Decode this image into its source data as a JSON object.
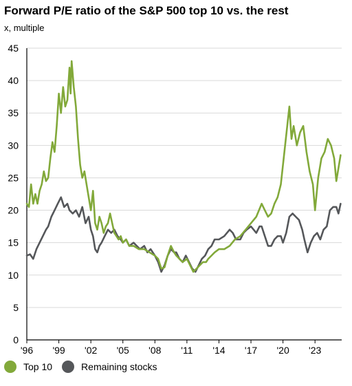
{
  "chart_data": {
    "type": "line",
    "title": "Forward P/E ratio of the S&P 500 top 10 vs. the rest",
    "subtitle": "x, multiple",
    "ylim": [
      0,
      45
    ],
    "xlim": [
      1996,
      2025.5
    ],
    "y_ticks": [
      0,
      5,
      10,
      15,
      20,
      25,
      30,
      35,
      40,
      45
    ],
    "x_ticks": [
      {
        "value": 1996,
        "label": "'96"
      },
      {
        "value": 1999,
        "label": "'99"
      },
      {
        "value": 2002,
        "label": "'02"
      },
      {
        "value": 2005,
        "label": "'05"
      },
      {
        "value": 2008,
        "label": "'08"
      },
      {
        "value": 2011,
        "label": "'11"
      },
      {
        "value": 2014,
        "label": "'14"
      },
      {
        "value": 2017,
        "label": "'17"
      },
      {
        "value": 2020,
        "label": "'20"
      },
      {
        "value": 2023,
        "label": "'23"
      }
    ],
    "grid": true,
    "legend_position": "bottom-left",
    "series": [
      {
        "name": "Top 10",
        "color": "#82a93a",
        "points": [
          [
            1996.0,
            21
          ],
          [
            1996.2,
            20.5
          ],
          [
            1996.4,
            24
          ],
          [
            1996.6,
            21
          ],
          [
            1996.8,
            22.5
          ],
          [
            1997.0,
            21
          ],
          [
            1997.2,
            23
          ],
          [
            1997.4,
            24
          ],
          [
            1997.6,
            26
          ],
          [
            1997.8,
            24.5
          ],
          [
            1998.0,
            25
          ],
          [
            1998.2,
            28
          ],
          [
            1998.4,
            30.5
          ],
          [
            1998.6,
            29
          ],
          [
            1998.8,
            33
          ],
          [
            1999.0,
            38
          ],
          [
            1999.2,
            35
          ],
          [
            1999.4,
            39
          ],
          [
            1999.6,
            36
          ],
          [
            1999.8,
            37
          ],
          [
            2000.0,
            42
          ],
          [
            2000.1,
            38
          ],
          [
            2000.2,
            43
          ],
          [
            2000.4,
            39
          ],
          [
            2000.6,
            36
          ],
          [
            2000.8,
            31
          ],
          [
            2001.0,
            27
          ],
          [
            2001.2,
            25
          ],
          [
            2001.4,
            26
          ],
          [
            2001.6,
            24
          ],
          [
            2001.8,
            22
          ],
          [
            2002.0,
            20
          ],
          [
            2002.2,
            23
          ],
          [
            2002.4,
            18
          ],
          [
            2002.6,
            17
          ],
          [
            2002.8,
            19
          ],
          [
            2003.0,
            18
          ],
          [
            2003.2,
            16.5
          ],
          [
            2003.4,
            17.5
          ],
          [
            2003.6,
            18
          ],
          [
            2003.8,
            19.5
          ],
          [
            2004.0,
            18
          ],
          [
            2004.2,
            16.5
          ],
          [
            2004.4,
            16
          ],
          [
            2004.6,
            15.5
          ],
          [
            2004.8,
            16
          ],
          [
            2005.0,
            15
          ],
          [
            2005.3,
            15.5
          ],
          [
            2005.6,
            14.5
          ],
          [
            2006.0,
            14.5
          ],
          [
            2006.5,
            14
          ],
          [
            2007.0,
            14
          ],
          [
            2007.5,
            13.5
          ],
          [
            2008.0,
            13
          ],
          [
            2008.3,
            12.5
          ],
          [
            2008.6,
            11
          ],
          [
            2008.9,
            11.2
          ],
          [
            2009.2,
            13
          ],
          [
            2009.5,
            14.5
          ],
          [
            2009.8,
            13.5
          ],
          [
            2010.0,
            13
          ],
          [
            2010.3,
            12.5
          ],
          [
            2010.6,
            12
          ],
          [
            2011.0,
            12.5
          ],
          [
            2011.3,
            11.5
          ],
          [
            2011.6,
            10.5
          ],
          [
            2011.9,
            11
          ],
          [
            2012.2,
            11.5
          ],
          [
            2012.5,
            12
          ],
          [
            2012.8,
            12
          ],
          [
            2013.0,
            12.5
          ],
          [
            2013.3,
            13
          ],
          [
            2013.6,
            13.5
          ],
          [
            2014.0,
            14
          ],
          [
            2014.5,
            14
          ],
          [
            2015.0,
            14.5
          ],
          [
            2015.5,
            15.5
          ],
          [
            2016.0,
            16
          ],
          [
            2016.5,
            17
          ],
          [
            2017.0,
            18
          ],
          [
            2017.5,
            19
          ],
          [
            2018.0,
            21
          ],
          [
            2018.3,
            20
          ],
          [
            2018.6,
            19
          ],
          [
            2018.9,
            19.5
          ],
          [
            2019.2,
            21
          ],
          [
            2019.5,
            22
          ],
          [
            2019.8,
            24
          ],
          [
            2020.0,
            27
          ],
          [
            2020.2,
            30
          ],
          [
            2020.4,
            33
          ],
          [
            2020.6,
            36
          ],
          [
            2020.8,
            31
          ],
          [
            2021.0,
            33
          ],
          [
            2021.3,
            30
          ],
          [
            2021.6,
            32
          ],
          [
            2021.9,
            33
          ],
          [
            2022.2,
            29
          ],
          [
            2022.5,
            26
          ],
          [
            2022.8,
            24
          ],
          [
            2023.0,
            20
          ],
          [
            2023.3,
            25
          ],
          [
            2023.6,
            28
          ],
          [
            2023.9,
            29
          ],
          [
            2024.2,
            31
          ],
          [
            2024.5,
            30
          ],
          [
            2024.8,
            28
          ],
          [
            2025.0,
            24.5
          ],
          [
            2025.2,
            26.5
          ],
          [
            2025.4,
            28.5
          ]
        ]
      },
      {
        "name": "Remaining stocks",
        "color": "#55575a",
        "points": [
          [
            1996.0,
            13
          ],
          [
            1996.3,
            13.2
          ],
          [
            1996.6,
            12.5
          ],
          [
            1996.9,
            14
          ],
          [
            1997.2,
            15
          ],
          [
            1997.5,
            16
          ],
          [
            1997.8,
            17
          ],
          [
            1998.0,
            17.5
          ],
          [
            1998.3,
            19
          ],
          [
            1998.6,
            20
          ],
          [
            1998.9,
            21
          ],
          [
            1999.2,
            22
          ],
          [
            1999.5,
            20.5
          ],
          [
            1999.8,
            21
          ],
          [
            2000.0,
            20
          ],
          [
            2000.3,
            19.5
          ],
          [
            2000.6,
            20
          ],
          [
            2000.9,
            19
          ],
          [
            2001.2,
            20.5
          ],
          [
            2001.5,
            18
          ],
          [
            2001.8,
            19
          ],
          [
            2002.0,
            17
          ],
          [
            2002.2,
            16
          ],
          [
            2002.4,
            14
          ],
          [
            2002.6,
            13.5
          ],
          [
            2002.8,
            14.5
          ],
          [
            2003.0,
            15
          ],
          [
            2003.3,
            16
          ],
          [
            2003.6,
            17
          ],
          [
            2003.9,
            16.5
          ],
          [
            2004.2,
            17
          ],
          [
            2004.5,
            16
          ],
          [
            2004.8,
            15.5
          ],
          [
            2005.0,
            15
          ],
          [
            2005.3,
            15.5
          ],
          [
            2005.6,
            14.5
          ],
          [
            2006.0,
            15
          ],
          [
            2006.3,
            14.5
          ],
          [
            2006.6,
            14
          ],
          [
            2007.0,
            14.5
          ],
          [
            2007.3,
            13.5
          ],
          [
            2007.6,
            14
          ],
          [
            2008.0,
            13
          ],
          [
            2008.3,
            12
          ],
          [
            2008.6,
            10.5
          ],
          [
            2008.9,
            11.5
          ],
          [
            2009.2,
            13
          ],
          [
            2009.5,
            14
          ],
          [
            2009.8,
            13.5
          ],
          [
            2010.0,
            13.5
          ],
          [
            2010.3,
            12.5
          ],
          [
            2010.6,
            12
          ],
          [
            2010.9,
            13
          ],
          [
            2011.2,
            12
          ],
          [
            2011.5,
            11
          ],
          [
            2011.8,
            10.5
          ],
          [
            2012.1,
            11.5
          ],
          [
            2012.4,
            12.5
          ],
          [
            2012.7,
            13
          ],
          [
            2013.0,
            14
          ],
          [
            2013.3,
            14.5
          ],
          [
            2013.6,
            15.5
          ],
          [
            2014.0,
            15.5
          ],
          [
            2014.5,
            16
          ],
          [
            2015.0,
            17
          ],
          [
            2015.3,
            16.5
          ],
          [
            2015.6,
            15.5
          ],
          [
            2016.0,
            15.5
          ],
          [
            2016.3,
            16.5
          ],
          [
            2016.6,
            17
          ],
          [
            2017.0,
            17.5
          ],
          [
            2017.5,
            16.5
          ],
          [
            2017.8,
            17.5
          ],
          [
            2018.0,
            17.5
          ],
          [
            2018.3,
            16
          ],
          [
            2018.6,
            14.5
          ],
          [
            2018.9,
            14.5
          ],
          [
            2019.2,
            15.5
          ],
          [
            2019.5,
            16
          ],
          [
            2019.8,
            16
          ],
          [
            2020.0,
            15
          ],
          [
            2020.3,
            16.5
          ],
          [
            2020.6,
            19
          ],
          [
            2020.9,
            19.5
          ],
          [
            2021.2,
            19
          ],
          [
            2021.5,
            18.5
          ],
          [
            2021.8,
            17
          ],
          [
            2022.0,
            15.5
          ],
          [
            2022.3,
            13.5
          ],
          [
            2022.6,
            15
          ],
          [
            2022.9,
            16
          ],
          [
            2023.2,
            16.5
          ],
          [
            2023.5,
            15.5
          ],
          [
            2023.8,
            17
          ],
          [
            2024.1,
            17.5
          ],
          [
            2024.4,
            20
          ],
          [
            2024.7,
            20.5
          ],
          [
            2025.0,
            20.5
          ],
          [
            2025.2,
            19.5
          ],
          [
            2025.4,
            21
          ]
        ]
      }
    ]
  }
}
